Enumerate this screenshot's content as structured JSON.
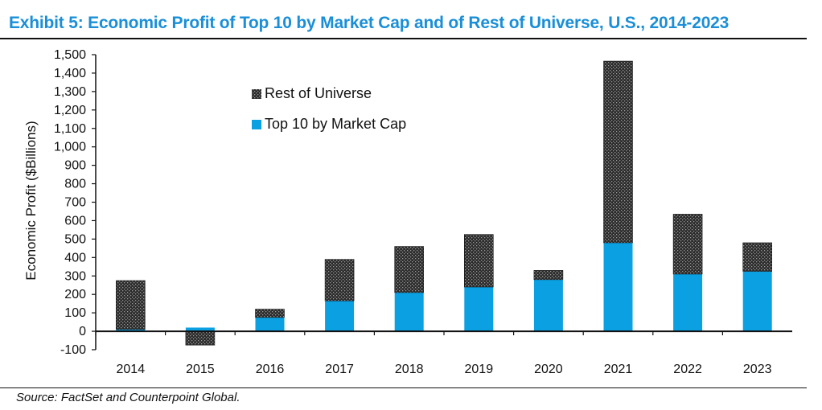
{
  "exhibit": {
    "title": "Exhibit 5: Economic Profit of Top 10 by Market Cap and of Rest of Universe, U.S., 2014-2023",
    "source": "Source: FactSet and Counterpoint Global."
  },
  "colors": {
    "title": "#1a8fd8",
    "top10": "#0aa0e2",
    "rest_fill": "#2b2b2b",
    "rest_dots": "#9a9a9a"
  },
  "chart_data": {
    "type": "bar",
    "stacked": true,
    "title": "Exhibit 5: Economic Profit of Top 10 by Market Cap and of Rest of Universe, U.S., 2014-2023",
    "xlabel": "",
    "ylabel": "Economic Profit ($Billions)",
    "ylim": [
      -100,
      1500
    ],
    "yticks": [
      -100,
      0,
      100,
      200,
      300,
      400,
      500,
      600,
      700,
      800,
      900,
      1000,
      1100,
      1200,
      1300,
      1400,
      1500
    ],
    "ytick_labels": [
      "-100",
      "0",
      "100",
      "200",
      "300",
      "400",
      "500",
      "600",
      "700",
      "800",
      "900",
      "1,000",
      "1,100",
      "1,200",
      "1,300",
      "1,400",
      "1,500"
    ],
    "categories": [
      "2014",
      "2015",
      "2016",
      "2017",
      "2018",
      "2019",
      "2020",
      "2021",
      "2022",
      "2023"
    ],
    "series": [
      {
        "name": "Top 10 by Market Cap",
        "values": [
          10,
          20,
          75,
          165,
          210,
          240,
          280,
          480,
          310,
          325
        ]
      },
      {
        "name": "Rest of Universe",
        "values": [
          265,
          -75,
          45,
          225,
          250,
          285,
          50,
          985,
          325,
          155
        ]
      }
    ],
    "legend_order": [
      "Rest of Universe",
      "Top 10 by Market Cap"
    ],
    "legend_position": "top-center",
    "grid": false
  }
}
